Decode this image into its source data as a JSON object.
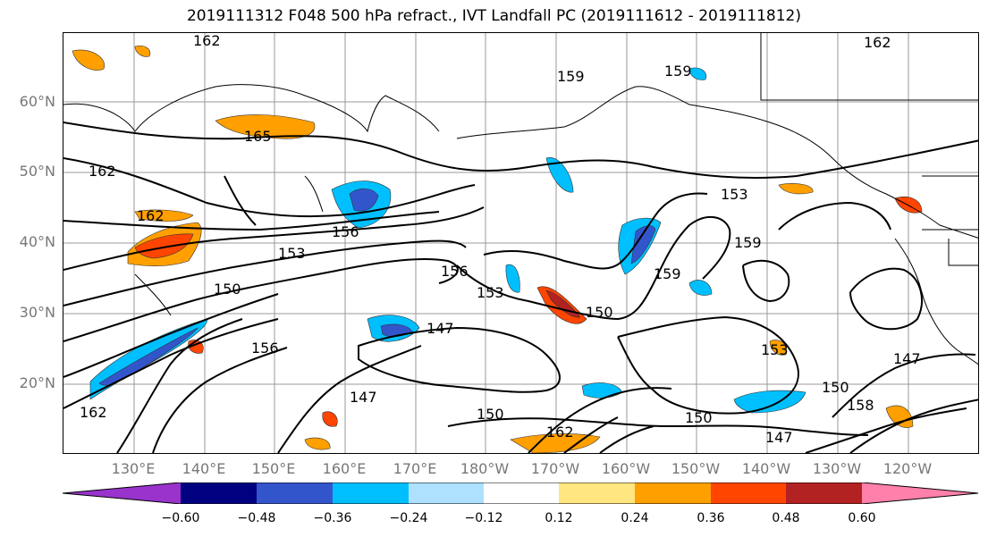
{
  "title": "2019111312 F048 500 hPa refract., IVT Landfall PC (2019111612 - 2019111812)",
  "lat_labels": [
    "60°N",
    "50°N",
    "40°N",
    "30°N",
    "20°N"
  ],
  "lon_labels": [
    "130°E",
    "140°E",
    "150°E",
    "160°E",
    "170°E",
    "180°W",
    "170°W",
    "160°W",
    "150°W",
    "140°W",
    "130°W",
    "120°W"
  ],
  "contour_labels": [
    "162",
    "162",
    "159",
    "159",
    "165",
    "162",
    "162",
    "159",
    "153",
    "156",
    "150",
    "156",
    "153",
    "156",
    "147",
    "150",
    "159",
    "153",
    "150",
    "147",
    "162",
    "150",
    "147",
    "153",
    "147",
    "150",
    "158",
    "162"
  ],
  "colorbar": {
    "colors": [
      "#9933cc",
      "#000080",
      "#3355cc",
      "#00bfff",
      "#aee0ff",
      "#ffffff",
      "#ffe680",
      "#ff9f00",
      "#ff4500",
      "#b22222",
      "#ff80aa"
    ],
    "tick_labels": [
      "−0.60",
      "−0.48",
      "−0.36",
      "−0.24",
      "−0.12",
      "0.12",
      "0.24",
      "0.36",
      "0.48",
      "0.60"
    ]
  }
}
